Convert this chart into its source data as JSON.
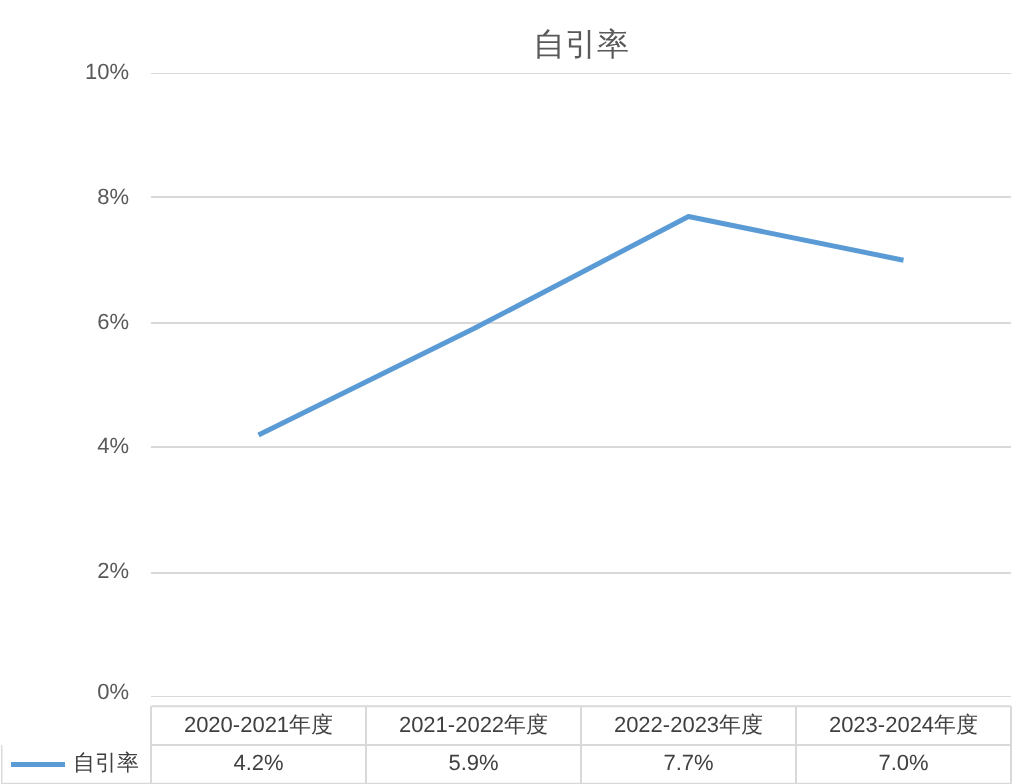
{
  "chart_data": {
    "type": "line",
    "title": "自引率",
    "categories": [
      "2020-2021年度",
      "2021-2022年度",
      "2022-2023年度",
      "2023-2024年度"
    ],
    "series": [
      {
        "name": "自引率",
        "color": "#5b9bd5",
        "values": [
          4.2,
          5.9,
          7.7,
          7.0
        ],
        "value_labels": [
          "4.2%",
          "5.9%",
          "7.7%",
          "7.0%"
        ]
      }
    ],
    "ylim": [
      0,
      10
    ],
    "yticks": [
      {
        "value": 0,
        "label": "0%"
      },
      {
        "value": 2,
        "label": "2%"
      },
      {
        "value": 4,
        "label": "4%"
      },
      {
        "value": 6,
        "label": "6%"
      },
      {
        "value": 8,
        "label": "8%"
      },
      {
        "value": 10,
        "label": "10%"
      }
    ],
    "grid": "y",
    "legend": "bottom",
    "marker": "none",
    "line_style": "solid"
  }
}
